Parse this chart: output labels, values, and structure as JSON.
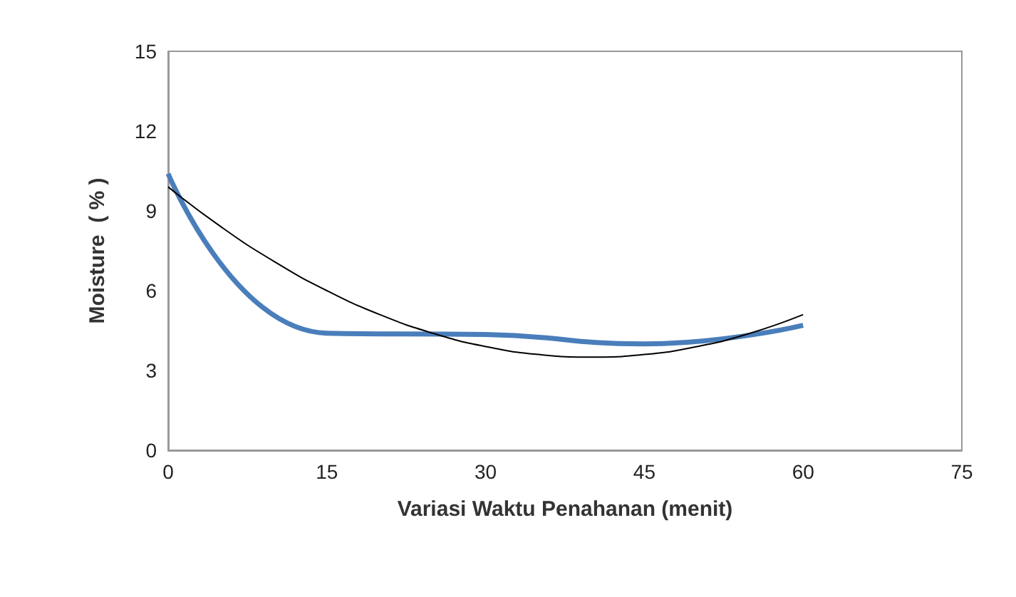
{
  "chart_data": {
    "type": "line",
    "xlabel": "Variasi Waktu Penahanan (menit)",
    "ylabel": "Moisture  ( % )",
    "xlim": [
      0,
      75
    ],
    "xticks": [
      0,
      15,
      30,
      45,
      60,
      75
    ],
    "ylim": [
      0,
      15
    ],
    "yticks": [
      0,
      3,
      6,
      9,
      12,
      15
    ],
    "grid": false,
    "marker": "none",
    "line_style": "solid",
    "series": [
      {
        "color": "#4a7ebb",
        "x": [
          0,
          15,
          30,
          45,
          60
        ],
        "values": [
          10.4,
          4.4,
          4.35,
          4.0,
          4.7
        ]
      },
      {
        "color": "#000000",
        "x": [
          0,
          5,
          10,
          15,
          20,
          25,
          30,
          35,
          40,
          45,
          50,
          55,
          60
        ],
        "values": [
          9.9,
          8.4,
          7.1,
          6.0,
          5.1,
          4.4,
          3.9,
          3.6,
          3.5,
          3.6,
          3.9,
          4.4,
          5.1
        ]
      }
    ]
  }
}
